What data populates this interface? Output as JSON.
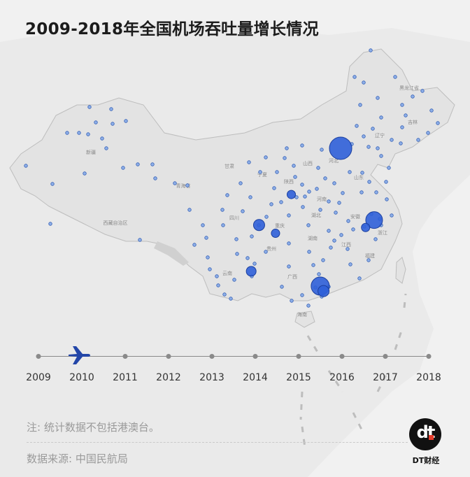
{
  "title": "2009-2018年全国机场吞吐量增长情况",
  "timeline": {
    "years": [
      "2009",
      "2010",
      "2011",
      "2012",
      "2013",
      "2014",
      "2015",
      "2016",
      "2017",
      "2018"
    ],
    "current_year": "2010"
  },
  "province_labels": {
    "heilongjiang": "黑龙江省",
    "jilin": "吉林",
    "liaoning": "辽宁",
    "xinjiang": "新疆",
    "gansu": "甘肃",
    "ningxia": "宁夏",
    "shanxi": "山西",
    "hebei": "河北",
    "qinghai": "青海省",
    "shaanxi": "陕西",
    "henan": "河南",
    "shandong": "山东",
    "xizang": "西藏自治区",
    "sichuan": "四川",
    "hubei": "湖北",
    "anhui": "安徽",
    "chongqing": "重庆",
    "zhejiang": "浙江",
    "guizhou": "贵州",
    "jiangxi": "江西",
    "hunan": "湖南",
    "yunnan": "云南",
    "guangxi": "广西",
    "fujian": "福建",
    "hainan": "海南"
  },
  "airports": [
    {
      "name": "beijing",
      "lon": 116.4,
      "lat": 39.9,
      "size": "large"
    },
    {
      "name": "shanghai",
      "lon": 121.5,
      "lat": 31.2,
      "size": "large"
    },
    {
      "name": "guangzhou",
      "lon": 113.3,
      "lat": 23.2,
      "size": "large"
    },
    {
      "name": "shenzhen",
      "lon": 113.8,
      "lat": 22.6,
      "size": "medium"
    },
    {
      "name": "chengdu",
      "lon": 104.0,
      "lat": 30.6,
      "size": "medium"
    },
    {
      "name": "kunming",
      "lon": 102.8,
      "lat": 25.0,
      "size": "medium"
    },
    {
      "name": "hangzhou",
      "lon": 120.2,
      "lat": 30.3,
      "size": "medium"
    },
    {
      "name": "xian",
      "lon": 108.9,
      "lat": 34.3,
      "size": "medium"
    },
    {
      "name": "chongqing",
      "lon": 106.5,
      "lat": 29.6,
      "size": "medium"
    }
  ],
  "note": "注: 统计数据不包括港澳台。",
  "source": "数据来源: 中国民航局",
  "brand": {
    "logo": "dt",
    "name": "DT财经"
  },
  "colors": {
    "bubble": "#2f5fd8",
    "bubble_stroke": "#1b3f9e",
    "land": "#e5e5e5",
    "border": "#b9b9b9",
    "plane": "#2346a8"
  }
}
